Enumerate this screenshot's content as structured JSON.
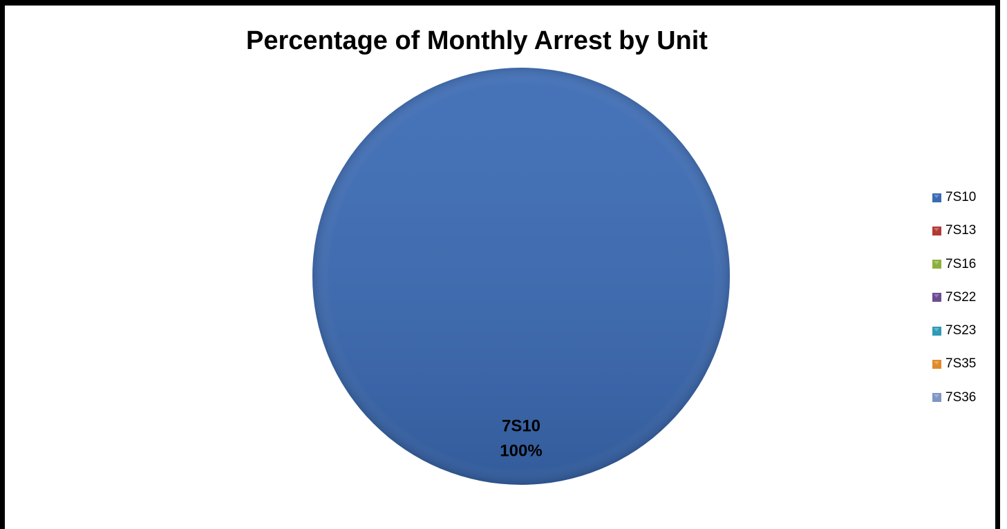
{
  "chart_data": {
    "type": "pie",
    "title": "Percentage of Monthly Arrest by Unit",
    "categories": [
      "7S10",
      "7S13",
      "7S16",
      "7S22",
      "7S23",
      "7S35",
      "7S36"
    ],
    "values": [
      100,
      0,
      0,
      0,
      0,
      0,
      0
    ],
    "colors": [
      "#3a6ab4",
      "#b23a36",
      "#8cb03e",
      "#6b4c92",
      "#2f9bb5",
      "#e08a2b",
      "#7f95c5"
    ],
    "data_labels": [
      {
        "category": "7S10",
        "value_text": "100%"
      }
    ],
    "legend": {
      "position": "right",
      "entries": [
        "7S10",
        "7S13",
        "7S16",
        "7S22",
        "7S23",
        "7S35",
        "7S36"
      ]
    }
  }
}
